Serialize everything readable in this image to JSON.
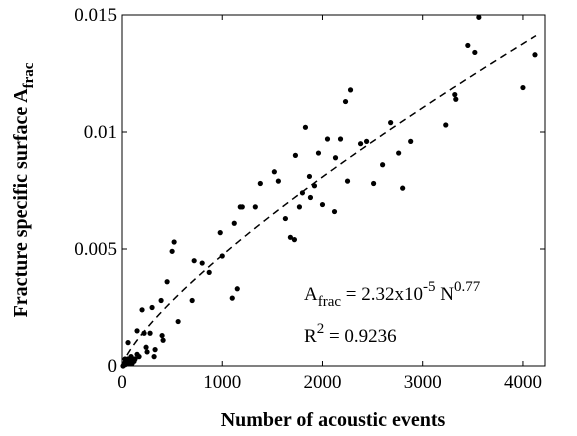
{
  "chart_data": {
    "type": "scatter",
    "x_label": "Number of acoustic events",
    "y_label": [
      "Fracture specific surface A",
      "frac"
    ],
    "xlim": [
      0,
      4220
    ],
    "ylim": [
      0,
      0.015
    ],
    "xticks": [
      0,
      1000,
      2000,
      3000,
      4000
    ],
    "yticks": [
      0,
      0.005,
      0.01,
      0.015
    ],
    "color": "#000000",
    "series": [
      {
        "x": [
          10,
          20,
          30,
          40,
          50,
          60,
          70,
          80,
          90,
          100,
          110,
          120,
          60,
          130,
          150,
          50,
          30,
          150,
          170,
          200,
          220,
          240,
          250,
          280,
          300,
          320,
          330,
          390,
          400,
          410,
          450,
          500,
          520,
          560,
          700,
          720,
          800,
          870,
          980,
          1000,
          1100,
          1120,
          1150,
          1180,
          1200,
          1330,
          1380,
          1520,
          1560,
          1630,
          1680,
          1720,
          1730,
          1770,
          1800,
          1830,
          1870,
          1880,
          1920,
          1960,
          2000,
          2050,
          2120,
          2130,
          2180,
          2230,
          2250,
          2280,
          2380,
          2440,
          2510,
          2600,
          2680,
          2760,
          2800,
          2880,
          3230,
          3320,
          3330,
          3450,
          3520,
          3560,
          4000,
          4120
        ],
        "values": [
          0,
          0.0001,
          5e-05,
          0.0002,
          0.0001,
          0.0003,
          0.0001,
          0.0002,
          0.0004,
          0.0001,
          0.0003,
          0.0002,
          0.001,
          0.0003,
          0.0005,
          0.00015,
          0.0003,
          0.0015,
          0.0004,
          0.0024,
          0.0014,
          0.0008,
          0.0006,
          0.0014,
          0.0025,
          0.0004,
          0.0007,
          0.0028,
          0.0013,
          0.0011,
          0.0036,
          0.0049,
          0.0053,
          0.0019,
          0.0028,
          0.0045,
          0.0044,
          0.004,
          0.0057,
          0.0047,
          0.0029,
          0.0061,
          0.0033,
          0.0068,
          0.0068,
          0.0068,
          0.0078,
          0.0083,
          0.0079,
          0.0063,
          0.0055,
          0.0054,
          0.009,
          0.0068,
          0.0074,
          0.0102,
          0.0081,
          0.0072,
          0.0077,
          0.0091,
          0.0069,
          0.0097,
          0.0066,
          0.0089,
          0.0097,
          0.0113,
          0.0079,
          0.0118,
          0.0095,
          0.0096,
          0.0078,
          0.0086,
          0.0104,
          0.0091,
          0.0076,
          0.0096,
          0.0103,
          0.0116,
          0.0114,
          0.0137,
          0.0134,
          0.0149,
          0.0119,
          0.0133
        ]
      }
    ],
    "fit": {
      "coefficient": 2.32e-05,
      "exponent": 0.77,
      "x_range": [
        0,
        4130
      ]
    },
    "annotations": [
      [
        "A",
        "frac",
        " = 2.32x10",
        "-5",
        " N",
        "0.77"
      ],
      [
        "R",
        "2",
        " = 0.9236"
      ]
    ]
  }
}
